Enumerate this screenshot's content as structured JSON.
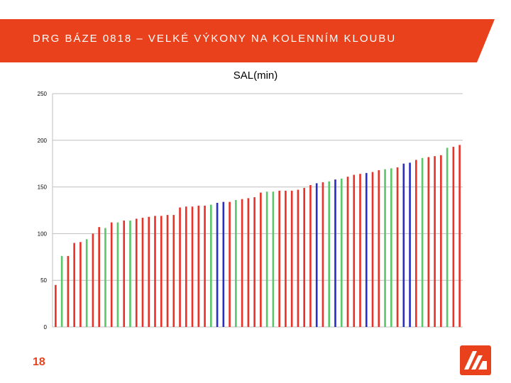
{
  "slide": {
    "title": "DRG BÁZE 0818 – VELKÉ VÝKONY NA KOLENNÍM KLOUBU",
    "page_number": "18",
    "accent_color": "#e8411c",
    "logo_icon": "company-logo-icon"
  },
  "colors": {
    "red": "#e8332a",
    "green": "#5cc66a",
    "blue": "#2a2ec2",
    "grid": "#bfbfbf"
  },
  "chart_data": {
    "type": "bar",
    "title": "SAL(min)",
    "xlabel": "",
    "ylabel": "",
    "ylim": [
      0,
      250
    ],
    "yticks": [
      0,
      50,
      100,
      150,
      200,
      250
    ],
    "grid": true,
    "legend": "none",
    "values": [
      45,
      76,
      76,
      90,
      91,
      94,
      100,
      107,
      106,
      112,
      112,
      114,
      114,
      116,
      117,
      118,
      119,
      119,
      120,
      120,
      128,
      129,
      129,
      130,
      130,
      131,
      133,
      134,
      134,
      136,
      137,
      138,
      139,
      144,
      145,
      145,
      146,
      146,
      146,
      147,
      149,
      152,
      154,
      155,
      156,
      158,
      159,
      161,
      163,
      164,
      165,
      166,
      168,
      169,
      170,
      171,
      175,
      176,
      179,
      181,
      182,
      183,
      184,
      192,
      193,
      195
    ],
    "colors": [
      "red",
      "green",
      "red",
      "red",
      "red",
      "green",
      "red",
      "red",
      "green",
      "red",
      "green",
      "red",
      "green",
      "red",
      "red",
      "red",
      "red",
      "red",
      "red",
      "red",
      "red",
      "red",
      "red",
      "red",
      "red",
      "green",
      "blue",
      "blue",
      "red",
      "green",
      "red",
      "red",
      "red",
      "red",
      "green",
      "green",
      "red",
      "red",
      "red",
      "red",
      "red",
      "red",
      "blue",
      "red",
      "green",
      "blue",
      "green",
      "red",
      "red",
      "red",
      "blue",
      "red",
      "red",
      "green",
      "green",
      "red",
      "blue",
      "blue",
      "red",
      "green",
      "red",
      "red",
      "red",
      "green",
      "red",
      "red"
    ]
  }
}
